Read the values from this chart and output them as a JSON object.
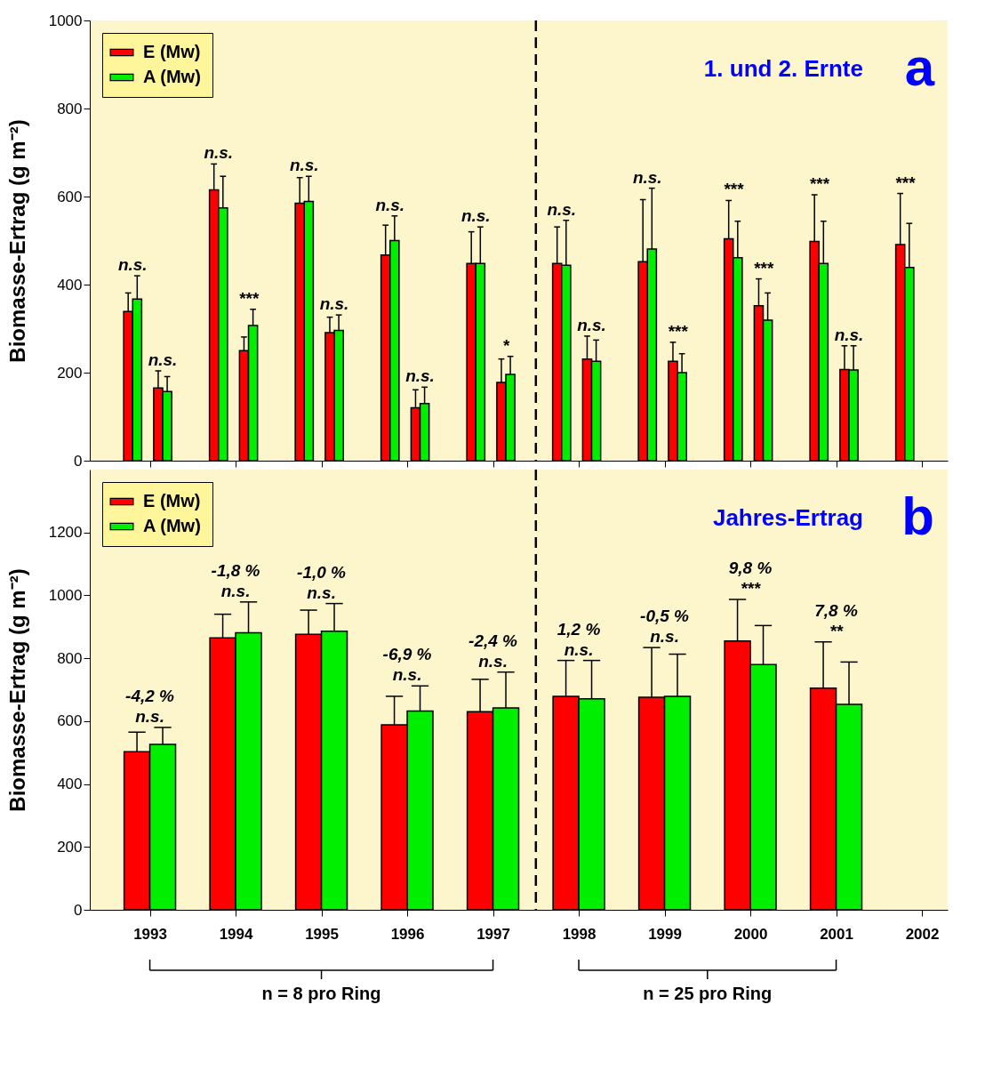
{
  "chart_data": [
    {
      "type": "bar",
      "ylabel": "Biomasse-Ertrag (g m⁻²)",
      "x": [
        1992.8,
        1993.15,
        1993.8,
        1994.15,
        1994.8,
        1995.15,
        1995.8,
        1996.15,
        1996.8,
        1997.15,
        1997.8,
        1998.15,
        1998.8,
        1999.15,
        1999.8,
        2000.15,
        2000.8,
        2001.15,
        2001.8
      ],
      "xlim": [
        1992.3,
        2002.3
      ],
      "xticks": [
        1993,
        1994,
        1995,
        1996,
        1997,
        1998,
        1999,
        2000,
        2001,
        2002
      ],
      "ylim": [
        0,
        1000
      ],
      "yticks": [
        0,
        200,
        400,
        600,
        800,
        1000
      ],
      "tick_labels": "y",
      "grid": false,
      "legend": "top left",
      "series": [
        {
          "name": "E (Mw)",
          "color": "#ff0000",
          "values": [
            339,
            165,
            615,
            250,
            585,
            291,
            467,
            120,
            448,
            178,
            448,
            231,
            452,
            226,
            504,
            352,
            498,
            207,
            491
          ],
          "errors": [
            [
              339,
              381
            ],
            [
              165,
              204
            ],
            [
              615,
              674
            ],
            [
              250,
              281
            ],
            [
              585,
              643
            ],
            [
              291,
              326
            ],
            [
              467,
              535
            ],
            [
              120,
              161
            ],
            [
              448,
              520
            ],
            [
              178,
              231
            ],
            [
              448,
              531
            ],
            [
              231,
              283
            ],
            [
              452,
              593
            ],
            [
              226,
              269
            ],
            [
              504,
              591
            ],
            [
              352,
              413
            ],
            [
              498,
              604
            ],
            [
              207,
              261
            ],
            [
              491,
              607
            ]
          ]
        },
        {
          "name": "A (Mw)",
          "color": "#00ee00",
          "values": [
            367,
            157,
            574,
            307,
            589,
            296,
            500,
            130,
            448,
            196,
            444,
            226,
            481,
            200,
            461,
            319,
            448,
            206,
            439
          ],
          "errors": [
            [
              367,
              420
            ],
            [
              157,
              191
            ],
            [
              574,
              646
            ],
            [
              307,
              344
            ],
            [
              589,
              646
            ],
            [
              296,
              331
            ],
            [
              500,
              556
            ],
            [
              130,
              167
            ],
            [
              448,
              531
            ],
            [
              196,
              237
            ],
            [
              444,
              546
            ],
            [
              226,
              274
            ],
            [
              481,
              619
            ],
            [
              200,
              243
            ],
            [
              461,
              544
            ],
            [
              319,
              381
            ],
            [
              448,
              544
            ],
            [
              206,
              261
            ],
            [
              439,
              539
            ]
          ]
        }
      ],
      "ref_lines": [
        {
          "axis": "x",
          "value": 1997.5,
          "color": "#000000",
          "line_style": "dashed"
        }
      ],
      "annotations": [
        "1. und 2. Ernte",
        "a",
        {
          "text": "n.s.",
          "x": 1992.8,
          "y": 420
        },
        {
          "text": "n.s.",
          "x": 1993.15,
          "y": 204
        },
        {
          "text": "n.s.",
          "x": 1993.8,
          "y": 674
        },
        {
          "text": "***",
          "x": 1994.15,
          "y": 344
        },
        {
          "text": "n.s.",
          "x": 1994.8,
          "y": 646
        },
        {
          "text": "n.s.",
          "x": 1995.15,
          "y": 331
        },
        {
          "text": "n.s.",
          "x": 1995.8,
          "y": 556
        },
        {
          "text": "n.s.",
          "x": 1996.15,
          "y": 167
        },
        {
          "text": "n.s.",
          "x": 1996.8,
          "y": 531
        },
        {
          "text": "*",
          "x": 1997.15,
          "y": 237
        },
        {
          "text": "n.s.",
          "x": 1997.8,
          "y": 546
        },
        {
          "text": "n.s.",
          "x": 1998.15,
          "y": 283
        },
        {
          "text": "n.s.",
          "x": 1998.8,
          "y": 619
        },
        {
          "text": "***",
          "x": 1999.15,
          "y": 269
        },
        {
          "text": "***",
          "x": 1999.8,
          "y": 591
        },
        {
          "text": "***",
          "x": 2000.15,
          "y": 413
        },
        {
          "text": "***",
          "x": 2000.8,
          "y": 604
        },
        {
          "text": "n.s.",
          "x": 2001.15,
          "y": 261
        },
        {
          "text": "***",
          "x": 2001.8,
          "y": 607
        }
      ]
    },
    {
      "type": "bar",
      "ylabel": "Biomasse-Ertrag (g m⁻²)",
      "x": [
        1993,
        1994,
        1995,
        1996,
        1997,
        1998,
        1999,
        2000,
        2001
      ],
      "xlim": [
        1992.3,
        2002.3
      ],
      "xticks": [
        1993,
        1994,
        1995,
        1996,
        1997,
        1998,
        1999,
        2000,
        2001,
        2002
      ],
      "ylim": [
        0,
        1400
      ],
      "yticks": [
        0,
        200,
        400,
        600,
        800,
        1000,
        1200
      ],
      "grid": false,
      "legend": "top left",
      "series": [
        {
          "name": "E (Mw)",
          "color": "#ff0000",
          "values": [
            503,
            865,
            876,
            588,
            630,
            679,
            676,
            855,
            705
          ],
          "errors": [
            [
              503,
              565
            ],
            [
              865,
              940
            ],
            [
              876,
              953
            ],
            [
              588,
              679
            ],
            [
              630,
              733
            ],
            [
              679,
              793
            ],
            [
              676,
              834
            ],
            [
              855,
              987
            ],
            [
              705,
              852
            ]
          ]
        },
        {
          "name": "A (Mw)",
          "color": "#00ee00",
          "values": [
            526,
            881,
            886,
            632,
            642,
            671,
            679,
            780,
            653
          ],
          "errors": [
            [
              526,
              580
            ],
            [
              881,
              979
            ],
            [
              886,
              974
            ],
            [
              632,
              712
            ],
            [
              642,
              756
            ],
            [
              671,
              793
            ],
            [
              679,
              813
            ],
            [
              780,
              904
            ],
            [
              653,
              788
            ]
          ]
        }
      ],
      "ref_lines": [
        {
          "axis": "x",
          "value": 1997.5,
          "color": "#000000",
          "line_style": "dashed"
        }
      ],
      "annotations": [
        "Jahres-Ertrag",
        "b",
        "n = 8 pro Ring",
        "n = 25 pro Ring",
        {
          "text": "-4,2 %",
          "x": 1993,
          "y": 580
        },
        {
          "text": "n.s.",
          "x": 1993,
          "y": 580
        },
        {
          "text": "-1,8 %",
          "x": 1994,
          "y": 979
        },
        {
          "text": "n.s.",
          "x": 1994,
          "y": 979
        },
        {
          "text": "-1,0 %",
          "x": 1995,
          "y": 974
        },
        {
          "text": "n.s.",
          "x": 1995,
          "y": 974
        },
        {
          "text": "-6,9 %",
          "x": 1996,
          "y": 712
        },
        {
          "text": "n.s.",
          "x": 1996,
          "y": 712
        },
        {
          "text": "-2,4 %",
          "x": 1997,
          "y": 756
        },
        {
          "text": "n.s.",
          "x": 1997,
          "y": 756
        },
        {
          "text": "1,2 %",
          "x": 1998,
          "y": 793
        },
        {
          "text": "n.s.",
          "x": 1998,
          "y": 793
        },
        {
          "text": "-0,5 %",
          "x": 1999,
          "y": 813
        },
        {
          "text": "n.s.",
          "x": 1999,
          "y": 813
        },
        {
          "text": "9,8 %",
          "x": 2000,
          "y": 904
        },
        {
          "text": "***",
          "x": 2000,
          "y": 904
        },
        {
          "text": "7,8 %",
          "x": 2001,
          "y": 788
        },
        {
          "text": "**",
          "x": 2001,
          "y": 788
        }
      ]
    }
  ]
}
